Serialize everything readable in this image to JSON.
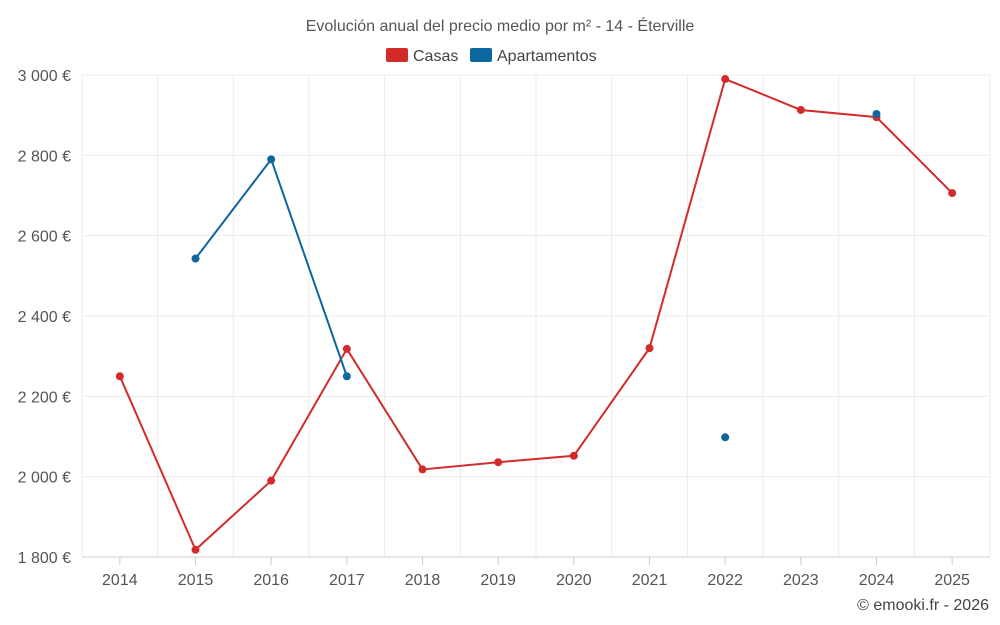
{
  "chart_data": {
    "type": "line",
    "title": "Evolución anual del precio medio por m² - 14 - Éterville",
    "categories": [
      "2014",
      "2015",
      "2016",
      "2017",
      "2018",
      "2019",
      "2020",
      "2021",
      "2022",
      "2023",
      "2024",
      "2025"
    ],
    "y_ticks": [
      1800,
      2000,
      2200,
      2400,
      2600,
      2800,
      3000
    ],
    "y_tick_labels": [
      "1 800 €",
      "2 000 €",
      "2 200 €",
      "2 400 €",
      "2 600 €",
      "2 800 €",
      "3 000 €"
    ],
    "ylim": [
      1800,
      3000
    ],
    "grid": true,
    "legend_position": "top-center",
    "series": [
      {
        "name": "Casas",
        "color": "#d32a2a",
        "values": [
          2250,
          1818,
          1990,
          2318,
          2018,
          2036,
          2052,
          2320,
          2990,
          2913,
          2895,
          2706
        ]
      },
      {
        "name": "Apartamentos",
        "color": "#0d679f",
        "values": [
          null,
          2543,
          2790,
          2250,
          null,
          null,
          null,
          null,
          2098,
          null,
          2903,
          null
        ]
      }
    ],
    "credit": "© emooki.fr - 2026"
  }
}
